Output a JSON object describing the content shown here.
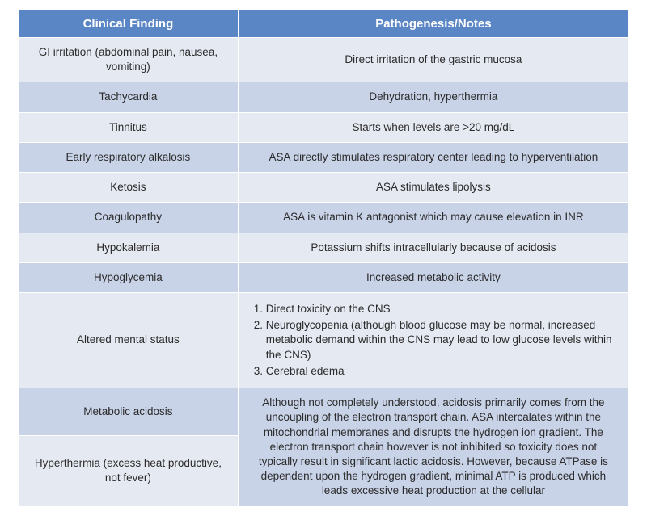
{
  "colors": {
    "header_bg": "#5b86c5",
    "row_odd_bg": "#e5e9f2",
    "row_even_bg": "#c9d3e8",
    "text": "#2b2b2b",
    "header_text": "#ffffff"
  },
  "columns": [
    {
      "label": "Clinical Finding",
      "width_pct": 36
    },
    {
      "label": "Pathogenesis/Notes",
      "width_pct": 64
    }
  ],
  "rows": [
    {
      "finding": "GI irritation (abdominal pain, nausea, vomiting)",
      "notes": "Direct irritation of the gastric mucosa"
    },
    {
      "finding": "Tachycardia",
      "notes": "Dehydration, hyperthermia"
    },
    {
      "finding": "Tinnitus",
      "notes": "Starts when levels are >20 mg/dL"
    },
    {
      "finding": "Early respiratory alkalosis",
      "notes": "ASA directly stimulates respiratory center leading to hyperventilation"
    },
    {
      "finding": "Ketosis",
      "notes": "ASA stimulates lipolysis"
    },
    {
      "finding": "Coagulopathy",
      "notes": "ASA is vitamin K antagonist which may cause elevation in INR"
    },
    {
      "finding": "Hypokalemia",
      "notes": "Potassium shifts intracellularly because of acidosis"
    },
    {
      "finding": "Hypoglycemia",
      "notes": "Increased metabolic activity"
    },
    {
      "finding": "Altered mental status",
      "notes_list": [
        "Direct toxicity on the CNS",
        "Neuroglycopenia (although blood glucose may be normal, increased metabolic demand within the CNS may lead to low glucose levels within the CNS)",
        "Cerebral edema"
      ]
    },
    {
      "finding": "Metabolic acidosis",
      "notes": "Although not completely understood, acidosis primarily comes from the uncoupling of the electron transport chain. ASA intercalates within the mitochondrial membranes and disrupts the hydrogen ion gradient. The electron transport chain however is not inhibited so toxicity does not typically result in significant lactic acidosis. However, because ATPase is dependent upon the hydrogen gradient, minimal ATP is produced which leads excessive heat production at the cellular",
      "merged_below": true
    },
    {
      "finding": "Hyperthermia (excess heat productive, not fever)",
      "merged_into_above": true
    }
  ]
}
